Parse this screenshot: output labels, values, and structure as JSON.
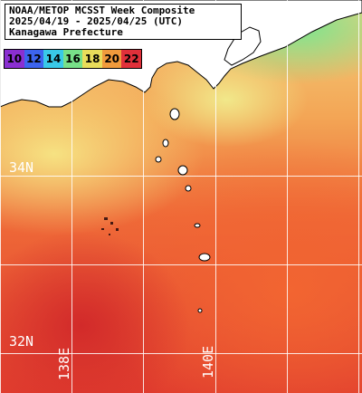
{
  "title": {
    "line1": "NOAA/METOP MCSST Week Composite",
    "line2": "2025/04/19 - 2025/04/25 (UTC)",
    "line3": "Kanagawa Prefecture"
  },
  "color_scale": [
    {
      "label": "10",
      "color": "#8a2fd1"
    },
    {
      "label": "12",
      "color": "#3d64ee"
    },
    {
      "label": "14",
      "color": "#39c9e8"
    },
    {
      "label": "16",
      "color": "#77e088"
    },
    {
      "label": "18",
      "color": "#e8dc5a"
    },
    {
      "label": "20",
      "color": "#f09a3c"
    },
    {
      "label": "22",
      "color": "#e0303a"
    }
  ],
  "graticule": {
    "latitudes": [
      "34N",
      "32N"
    ],
    "longitudes": [
      "138E",
      "140E"
    ]
  }
}
